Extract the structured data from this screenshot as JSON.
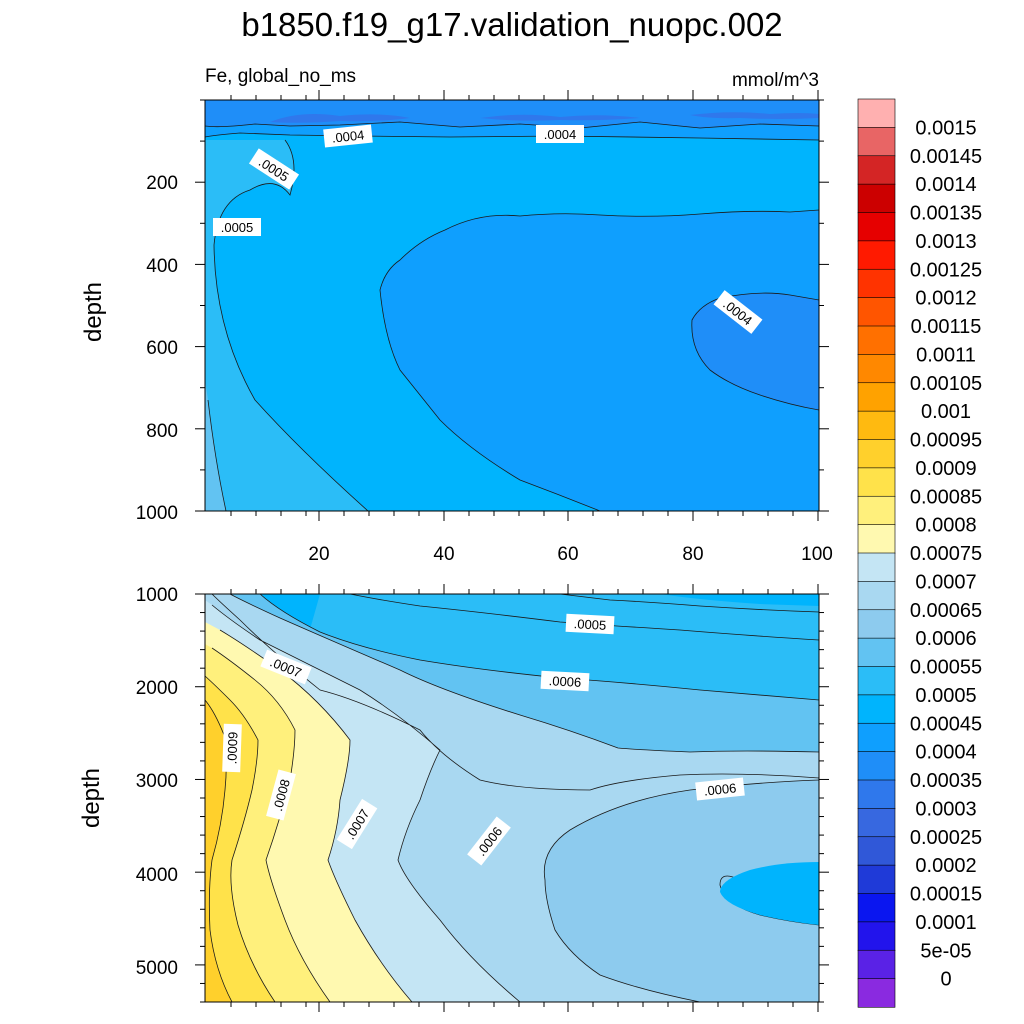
{
  "chart_data": {
    "type": "heatmap",
    "title": "b1850.f19_g17.validation_nuopc.002",
    "subtitle_left": "Fe, global_no_ms",
    "subtitle_right": "mmol/m^3",
    "colors": {
      "lev_0p0003": "#2f78ec",
      "lev_0p00035": "#1f8ef8",
      "lev_0p0004": "#0f9ffe",
      "lev_0p00045": "#00b4fd",
      "lev_0p0005": "#2bbdf7",
      "lev_0p00055": "#62c3f2",
      "lev_0p0006": "#8dcbee",
      "lev_0p00065": "#a9d8f1",
      "lev_0p0007": "#c4e5f4",
      "lev_0p00075": "#fff9b0",
      "lev_0p0008": "#fff07c",
      "lev_0p00085": "#ffe24a",
      "lev_0p0009": "#ffd02c",
      "contour_line": "#1a1a1a"
    },
    "panels": [
      {
        "name": "upper",
        "xlabel": "",
        "ylabel": "depth",
        "xlim": [
          0,
          101
        ],
        "ylim": [
          1000,
          0
        ],
        "xticks": [
          "20",
          "40",
          "60",
          "80",
          "100"
        ],
        "yticks": [
          "200",
          "400",
          "600",
          "800",
          "1000"
        ],
        "contour_labels": [
          ".0004",
          ".0004",
          ".0005",
          ".0005",
          ".0004"
        ]
      },
      {
        "name": "lower",
        "xlabel": "",
        "ylabel": "depth",
        "xlim": [
          0,
          101
        ],
        "ylim": [
          5400,
          1000
        ],
        "yticks": [
          "1000",
          "2000",
          "3000",
          "4000",
          "5000"
        ],
        "contour_labels": [
          ".0005",
          ".0007",
          ".0006",
          ".0009",
          ".0008",
          ".0007",
          ".0006",
          ".0006"
        ]
      }
    ],
    "colorbar": {
      "labels": [
        "0.0015",
        "0.00145",
        "0.0014",
        "0.00135",
        "0.0013",
        "0.00125",
        "0.0012",
        "0.00115",
        "0.0011",
        "0.00105",
        "0.001",
        "0.00095",
        "0.0009",
        "0.00085",
        "0.0008",
        "0.00075",
        "0.0007",
        "0.00065",
        "0.0006",
        "0.00055",
        "0.0005",
        "0.00045",
        "0.0004",
        "0.00035",
        "0.0003",
        "0.00025",
        "0.0002",
        "0.00015",
        "0.0001",
        "5e-05",
        "0"
      ],
      "colors": [
        "#ffb0b0",
        "#e86565",
        "#d42525",
        "#cc0000",
        "#e60000",
        "#ff1a00",
        "#ff3300",
        "#ff5500",
        "#ff7000",
        "#ff8800",
        "#ffa200",
        "#ffba10",
        "#ffd02c",
        "#ffe24a",
        "#fff07c",
        "#fff9b0",
        "#c4e5f4",
        "#a9d8f1",
        "#8dcbee",
        "#62c3f2",
        "#2bbdf7",
        "#00b4fd",
        "#0f9ffe",
        "#1f8ef8",
        "#2f78ec",
        "#3768e0",
        "#3058d8",
        "#1f3ad8",
        "#0a16f0",
        "#2214ec",
        "#5a22e6",
        "#8a2ae0"
      ]
    }
  }
}
